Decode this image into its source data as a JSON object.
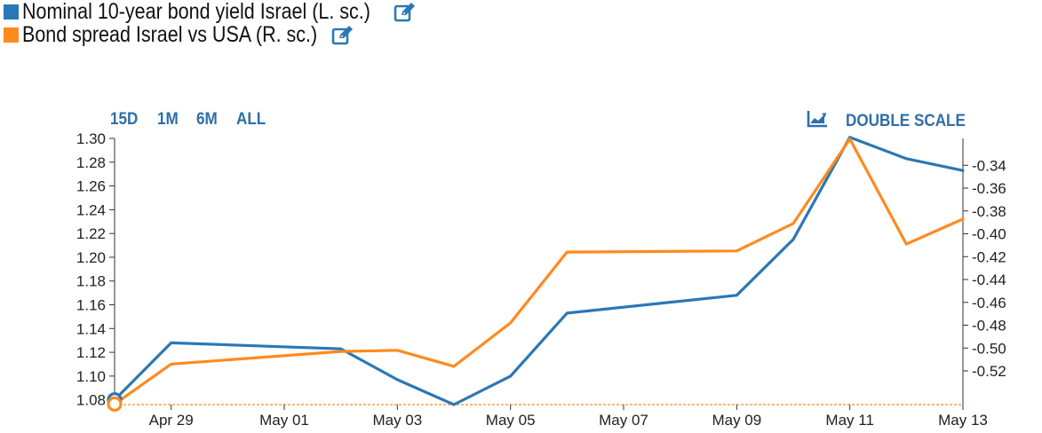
{
  "legend": {
    "items": [
      {
        "label": "Nominal 10-year bond yield Israel (L. sc.)",
        "color": "#2a78b5",
        "icon": "edit-icon"
      },
      {
        "label": "Bond spread Israel vs USA (R. sc.)",
        "color": "#ff8a1f",
        "icon": "edit-icon"
      }
    ]
  },
  "controls": {
    "ranges": [
      "15D",
      "1M",
      "6M",
      "ALL"
    ],
    "double_scale_label": "DOUBLE SCALE",
    "double_scale_icon": "area-chart-icon",
    "accent_color": "#2f6ea8"
  },
  "chart_data": {
    "type": "line",
    "x": [
      "Apr 28",
      "Apr 29",
      "May 02",
      "May 03",
      "May 04",
      "May 05",
      "May 06",
      "May 09",
      "May 10",
      "May 11",
      "May 12",
      "May 13"
    ],
    "x_tick_labels": [
      "Apr 29",
      "May 01",
      "May 03",
      "May 05",
      "May 07",
      "May 09",
      "May 11",
      "May 13"
    ],
    "series": [
      {
        "name": "Nominal 10-year bond yield Israel (L. sc.)",
        "axis": "left",
        "color": "#2a78b5",
        "values": [
          1.08,
          1.128,
          1.123,
          1.097,
          1.076,
          1.1,
          1.153,
          1.168,
          1.215,
          1.301,
          1.283,
          1.273
        ]
      },
      {
        "name": "Bond spread Israel vs USA (R. sc.)",
        "axis": "right",
        "color": "#ff8a1f",
        "values": [
          -0.549,
          -0.514,
          -0.503,
          -0.502,
          -0.516,
          -0.478,
          -0.416,
          -0.415,
          -0.391,
          -0.317,
          -0.409,
          -0.387
        ]
      }
    ],
    "left_axis": {
      "ylim": [
        1.076,
        1.3
      ],
      "ticks": [
        "1.08",
        "1.10",
        "1.12",
        "1.14",
        "1.16",
        "1.18",
        "1.20",
        "1.22",
        "1.24",
        "1.26",
        "1.28",
        "1.30"
      ]
    },
    "right_axis": {
      "ylim": [
        -0.5495,
        -0.3165
      ],
      "ticks": [
        "-0.52",
        "-0.50",
        "-0.48",
        "-0.46",
        "-0.44",
        "-0.42",
        "-0.40",
        "-0.38",
        "-0.36",
        "-0.34"
      ]
    },
    "grid": false
  }
}
